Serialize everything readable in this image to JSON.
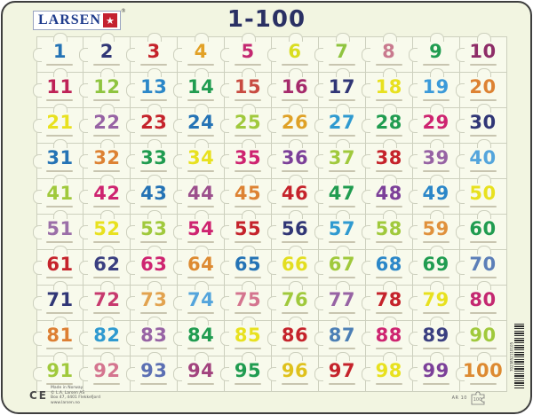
{
  "header": {
    "logo_text": "LARSEN",
    "logo_star_icon": "★",
    "logo_reg": "®",
    "title": "1-100"
  },
  "grid": {
    "rows": 10,
    "cols": 10,
    "cells": [
      {
        "v": "1",
        "c": "#2473B5"
      },
      {
        "v": "2",
        "c": "#303676"
      },
      {
        "v": "3",
        "c": "#C5232B"
      },
      {
        "v": "4",
        "c": "#E2A126"
      },
      {
        "v": "5",
        "c": "#C42871"
      },
      {
        "v": "6",
        "c": "#D9DD1F"
      },
      {
        "v": "7",
        "c": "#8FC43F"
      },
      {
        "v": "8",
        "c": "#C97A8E"
      },
      {
        "v": "9",
        "c": "#209C50"
      },
      {
        "v": "10",
        "c": "#8E2D68"
      },
      {
        "v": "11",
        "c": "#BE2257"
      },
      {
        "v": "12",
        "c": "#8FC43F"
      },
      {
        "v": "13",
        "c": "#2B87C8"
      },
      {
        "v": "14",
        "c": "#209C50"
      },
      {
        "v": "15",
        "c": "#C84B41"
      },
      {
        "v": "16",
        "c": "#A52A6B"
      },
      {
        "v": "17",
        "c": "#303676"
      },
      {
        "v": "18",
        "c": "#E8E11F"
      },
      {
        "v": "19",
        "c": "#3B9AD9"
      },
      {
        "v": "20",
        "c": "#DD8233"
      },
      {
        "v": "21",
        "c": "#E8E11F"
      },
      {
        "v": "22",
        "c": "#9763A4"
      },
      {
        "v": "23",
        "c": "#C5232B"
      },
      {
        "v": "24",
        "c": "#2473B5"
      },
      {
        "v": "25",
        "c": "#A0C93C"
      },
      {
        "v": "26",
        "c": "#DFA126"
      },
      {
        "v": "27",
        "c": "#2F9AD0"
      },
      {
        "v": "28",
        "c": "#209C50"
      },
      {
        "v": "29",
        "c": "#CE2470"
      },
      {
        "v": "30",
        "c": "#303676"
      },
      {
        "v": "31",
        "c": "#2473B5"
      },
      {
        "v": "32",
        "c": "#DD8233"
      },
      {
        "v": "33",
        "c": "#209C50"
      },
      {
        "v": "34",
        "c": "#E8E11F"
      },
      {
        "v": "35",
        "c": "#CE2470"
      },
      {
        "v": "36",
        "c": "#7C4099"
      },
      {
        "v": "37",
        "c": "#A0C93C"
      },
      {
        "v": "38",
        "c": "#C5232B"
      },
      {
        "v": "39",
        "c": "#9763A4"
      },
      {
        "v": "40",
        "c": "#54A5DC"
      },
      {
        "v": "41",
        "c": "#A0C93C"
      },
      {
        "v": "42",
        "c": "#CE2470"
      },
      {
        "v": "43",
        "c": "#2473B5"
      },
      {
        "v": "44",
        "c": "#9C4F8C"
      },
      {
        "v": "45",
        "c": "#DD8233"
      },
      {
        "v": "46",
        "c": "#C5232B"
      },
      {
        "v": "47",
        "c": "#209C50"
      },
      {
        "v": "48",
        "c": "#7C4099"
      },
      {
        "v": "49",
        "c": "#2B87C8"
      },
      {
        "v": "50",
        "c": "#E8E11F"
      },
      {
        "v": "51",
        "c": "#9B6FA8"
      },
      {
        "v": "52",
        "c": "#E8E11F"
      },
      {
        "v": "53",
        "c": "#A0C93C"
      },
      {
        "v": "54",
        "c": "#CE2470"
      },
      {
        "v": "55",
        "c": "#C5232B"
      },
      {
        "v": "56",
        "c": "#303676"
      },
      {
        "v": "57",
        "c": "#2F9AD0"
      },
      {
        "v": "58",
        "c": "#A0C93C"
      },
      {
        "v": "59",
        "c": "#E0913C"
      },
      {
        "v": "60",
        "c": "#209C50"
      },
      {
        "v": "61",
        "c": "#C5232B"
      },
      {
        "v": "62",
        "c": "#3A3F80"
      },
      {
        "v": "63",
        "c": "#CE2470"
      },
      {
        "v": "64",
        "c": "#DD8A31"
      },
      {
        "v": "65",
        "c": "#2473B5"
      },
      {
        "v": "66",
        "c": "#E3DE20"
      },
      {
        "v": "67",
        "c": "#A0C93C"
      },
      {
        "v": "68",
        "c": "#2B87C8"
      },
      {
        "v": "69",
        "c": "#209C50"
      },
      {
        "v": "70",
        "c": "#5C7FB8"
      },
      {
        "v": "71",
        "c": "#303676"
      },
      {
        "v": "72",
        "c": "#C73A6E"
      },
      {
        "v": "73",
        "c": "#E2A34F"
      },
      {
        "v": "74",
        "c": "#54A5DC"
      },
      {
        "v": "75",
        "c": "#D4758F"
      },
      {
        "v": "76",
        "c": "#A0C93C"
      },
      {
        "v": "77",
        "c": "#9763A4"
      },
      {
        "v": "78",
        "c": "#C5232B"
      },
      {
        "v": "79",
        "c": "#E8E11F"
      },
      {
        "v": "80",
        "c": "#C42871"
      },
      {
        "v": "81",
        "c": "#DD7F33"
      },
      {
        "v": "82",
        "c": "#2F9AD0"
      },
      {
        "v": "83",
        "c": "#9763A4"
      },
      {
        "v": "84",
        "c": "#209C50"
      },
      {
        "v": "85",
        "c": "#E8E11F"
      },
      {
        "v": "86",
        "c": "#C5232B"
      },
      {
        "v": "87",
        "c": "#4C7FB5"
      },
      {
        "v": "88",
        "c": "#CE2470"
      },
      {
        "v": "89",
        "c": "#3A3F80"
      },
      {
        "v": "90",
        "c": "#A0C93C"
      },
      {
        "v": "91",
        "c": "#A0C93C"
      },
      {
        "v": "92",
        "c": "#D4758F"
      },
      {
        "v": "93",
        "c": "#5B6FB3"
      },
      {
        "v": "94",
        "c": "#A2437E"
      },
      {
        "v": "95",
        "c": "#209C50"
      },
      {
        "v": "96",
        "c": "#DFC11C"
      },
      {
        "v": "97",
        "c": "#C5232B"
      },
      {
        "v": "98",
        "c": "#E8E11F"
      },
      {
        "v": "99",
        "c": "#7C4099"
      },
      {
        "v": "100",
        "c": "#DD8A31"
      }
    ]
  },
  "footer": {
    "ce_mark": "CE",
    "address_lines": [
      "Made in Norway",
      "© L.A. Larsen AS",
      "Box 47, 4401 Flekkefjord",
      "www.larsen.no"
    ],
    "product_code": "AR 10",
    "piece_count": "100",
    "barcode_digits": "7023852110105"
  },
  "colors": {
    "board_background": "#F2F5E1",
    "piece_background": "#F8FAEC",
    "piece_outline": "#CDD0BE",
    "title_text": "#2A3064",
    "logo_blue": "#1F3C8C",
    "logo_red": "#C42130"
  }
}
